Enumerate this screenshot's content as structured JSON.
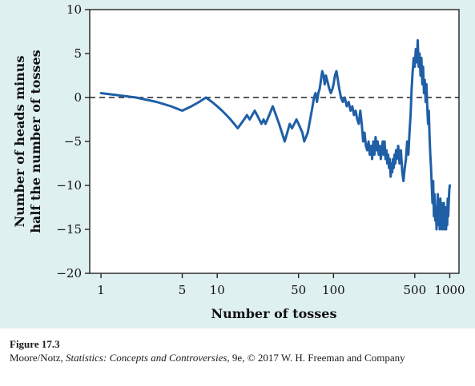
{
  "chart_data": {
    "type": "line",
    "title": "",
    "xlabel": "Number of tosses",
    "ylabel_lines": [
      "Number of heads minus",
      "half the number of tosses"
    ],
    "x_scale": "log",
    "xlim": [
      0.8,
      1200
    ],
    "ylim": [
      -20,
      10
    ],
    "x_ticks": [
      1,
      5,
      10,
      50,
      100,
      500,
      1000
    ],
    "x_tick_labels": [
      "1",
      "5",
      "10",
      "50",
      "100",
      "500",
      "1000"
    ],
    "y_ticks": [
      -20,
      -15,
      -10,
      -5,
      0,
      5,
      10
    ],
    "y_tick_labels": [
      "−20",
      "−15",
      "−10",
      "−5",
      "0",
      "5",
      "10"
    ],
    "reference_line": {
      "y": 0,
      "style": "dashed"
    },
    "grid": false,
    "line_color": "#1f5fa6",
    "series": [
      {
        "values": [
          [
            1,
            0.5
          ],
          [
            2,
            0
          ],
          [
            3,
            -0.5
          ],
          [
            4,
            -1
          ],
          [
            5,
            -1.5
          ],
          [
            6,
            -1
          ],
          [
            7,
            -0.5
          ],
          [
            8,
            0
          ],
          [
            9,
            -0.5
          ],
          [
            10,
            -1
          ],
          [
            11,
            -1.5
          ],
          [
            12,
            -2
          ],
          [
            13,
            -2.5
          ],
          [
            14,
            -3
          ],
          [
            15,
            -3.5
          ],
          [
            16,
            -3
          ],
          [
            17,
            -2.5
          ],
          [
            18,
            -2
          ],
          [
            19,
            -2.5
          ],
          [
            20,
            -2
          ],
          [
            21,
            -1.5
          ],
          [
            22,
            -2
          ],
          [
            23,
            -2.5
          ],
          [
            24,
            -3
          ],
          [
            25,
            -2.5
          ],
          [
            26,
            -3
          ],
          [
            27,
            -2.5
          ],
          [
            28,
            -2
          ],
          [
            29,
            -1.5
          ],
          [
            30,
            -1
          ],
          [
            32,
            -2
          ],
          [
            34,
            -3
          ],
          [
            36,
            -4
          ],
          [
            38,
            -5
          ],
          [
            40,
            -4
          ],
          [
            42,
            -3
          ],
          [
            44,
            -3.5
          ],
          [
            46,
            -3
          ],
          [
            48,
            -2.5
          ],
          [
            50,
            -3
          ],
          [
            52,
            -3.5
          ],
          [
            54,
            -4
          ],
          [
            56,
            -5
          ],
          [
            58,
            -4.5
          ],
          [
            60,
            -4
          ],
          [
            62,
            -3
          ],
          [
            64,
            -2
          ],
          [
            66,
            -1
          ],
          [
            68,
            0
          ],
          [
            70,
            0.5
          ],
          [
            72,
            -0.5
          ],
          [
            74,
            0.5
          ],
          [
            76,
            1
          ],
          [
            78,
            2
          ],
          [
            80,
            3
          ],
          [
            82,
            2.5
          ],
          [
            84,
            1.5
          ],
          [
            86,
            2.5
          ],
          [
            88,
            2
          ],
          [
            90,
            1.5
          ],
          [
            92,
            1
          ],
          [
            95,
            0.5
          ],
          [
            98,
            1
          ],
          [
            100,
            1.5
          ],
          [
            103,
            2.5
          ],
          [
            106,
            3
          ],
          [
            109,
            2
          ],
          [
            112,
            1
          ],
          [
            116,
            0
          ],
          [
            120,
            -0.5
          ],
          [
            125,
            0
          ],
          [
            130,
            -1
          ],
          [
            135,
            -0.5
          ],
          [
            140,
            -1.5
          ],
          [
            145,
            -1
          ],
          [
            150,
            -2
          ],
          [
            155,
            -1.5
          ],
          [
            160,
            -2.5
          ],
          [
            165,
            -3
          ],
          [
            170,
            -1.5
          ],
          [
            175,
            -3
          ],
          [
            180,
            -5
          ],
          [
            185,
            -4
          ],
          [
            190,
            -5.5
          ],
          [
            195,
            -6
          ],
          [
            200,
            -5
          ],
          [
            205,
            -6.5
          ],
          [
            210,
            -5.5
          ],
          [
            215,
            -7
          ],
          [
            220,
            -5
          ],
          [
            225,
            -6.5
          ],
          [
            230,
            -4.5
          ],
          [
            235,
            -6
          ],
          [
            240,
            -5
          ],
          [
            245,
            -6.5
          ],
          [
            250,
            -5.5
          ],
          [
            255,
            -7
          ],
          [
            260,
            -6
          ],
          [
            265,
            -5
          ],
          [
            270,
            -6.5
          ],
          [
            275,
            -5
          ],
          [
            280,
            -7
          ],
          [
            285,
            -6
          ],
          [
            290,
            -7.5
          ],
          [
            295,
            -6.5
          ],
          [
            300,
            -8
          ],
          [
            305,
            -7
          ],
          [
            310,
            -9
          ],
          [
            315,
            -7.5
          ],
          [
            320,
            -8.5
          ],
          [
            325,
            -7
          ],
          [
            330,
            -8
          ],
          [
            335,
            -6.5
          ],
          [
            340,
            -7.5
          ],
          [
            345,
            -6
          ],
          [
            350,
            -7
          ],
          [
            360,
            -5.5
          ],
          [
            370,
            -7.5
          ],
          [
            380,
            -6
          ],
          [
            390,
            -8.5
          ],
          [
            400,
            -9.5
          ],
          [
            410,
            -8
          ],
          [
            420,
            -7
          ],
          [
            430,
            -5
          ],
          [
            440,
            -6.5
          ],
          [
            450,
            -4
          ],
          [
            460,
            -2
          ],
          [
            470,
            1
          ],
          [
            480,
            3
          ],
          [
            490,
            4.5
          ],
          [
            500,
            3.5
          ],
          [
            510,
            5.5
          ],
          [
            520,
            4
          ],
          [
            530,
            6.5
          ],
          [
            540,
            3.5
          ],
          [
            550,
            5
          ],
          [
            560,
            2.5
          ],
          [
            570,
            4.5
          ],
          [
            580,
            1.5
          ],
          [
            590,
            3.5
          ],
          [
            600,
            0.5
          ],
          [
            610,
            2
          ],
          [
            620,
            -0.5
          ],
          [
            630,
            1.5
          ],
          [
            640,
            -1
          ],
          [
            650,
            -3
          ],
          [
            660,
            -1.5
          ],
          [
            670,
            -4.5
          ],
          [
            680,
            -6.5
          ],
          [
            690,
            -8
          ],
          [
            700,
            -10
          ],
          [
            710,
            -12
          ],
          [
            720,
            -9.5
          ],
          [
            730,
            -13.5
          ],
          [
            740,
            -11
          ],
          [
            750,
            -14
          ],
          [
            760,
            -12.5
          ],
          [
            770,
            -15
          ],
          [
            780,
            -13
          ],
          [
            790,
            -11
          ],
          [
            800,
            -14.5
          ],
          [
            810,
            -12
          ],
          [
            820,
            -15
          ],
          [
            830,
            -11.5
          ],
          [
            840,
            -14
          ],
          [
            850,
            -12
          ],
          [
            860,
            -15
          ],
          [
            870,
            -13
          ],
          [
            880,
            -14.5
          ],
          [
            890,
            -12
          ],
          [
            900,
            -15
          ],
          [
            910,
            -14
          ],
          [
            920,
            -12.5
          ],
          [
            930,
            -15
          ],
          [
            940,
            -13
          ],
          [
            950,
            -14.5
          ],
          [
            960,
            -11.5
          ],
          [
            970,
            -13.5
          ],
          [
            980,
            -12
          ],
          [
            990,
            -10.5
          ],
          [
            1000,
            -10
          ]
        ]
      }
    ]
  },
  "caption": {
    "figure_label": "Figure 17.3",
    "text_before_title": "Moore/Notz, ",
    "book_title": "Statistics: Concepts and Controversies",
    "text_after_title": ", 9e, © 2017 W. H. Freeman and Company"
  }
}
